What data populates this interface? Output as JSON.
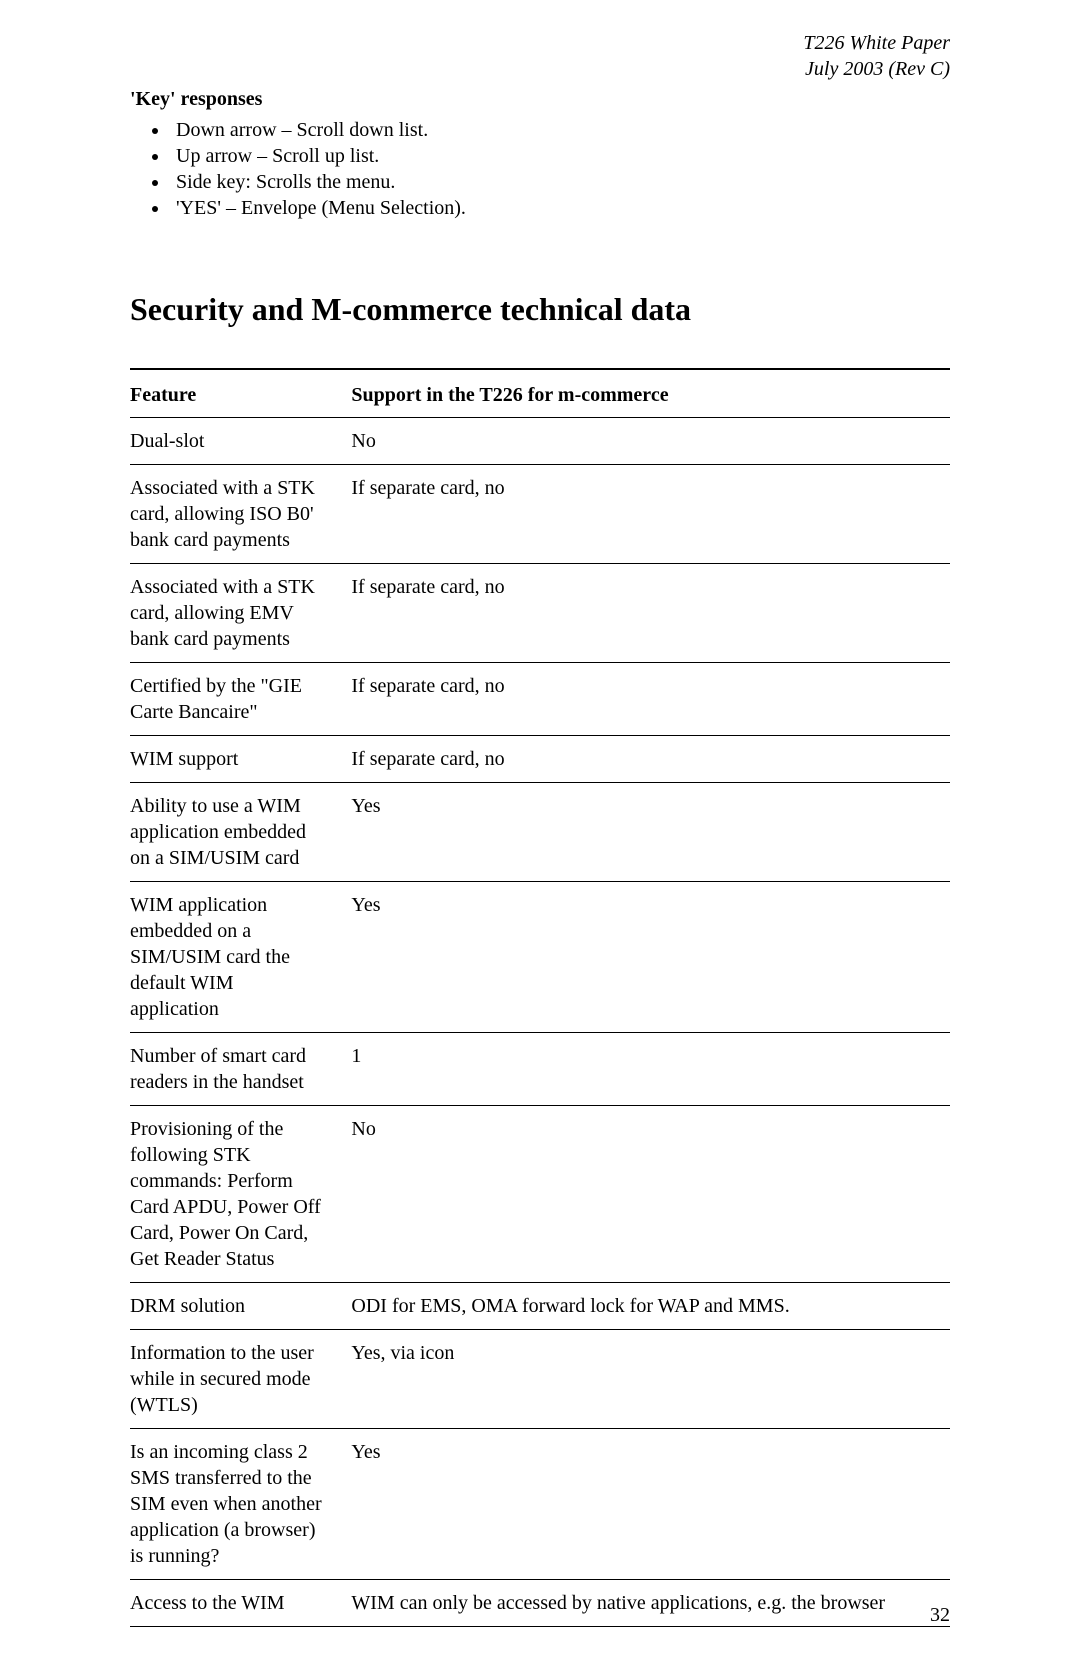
{
  "header": {
    "line1": "T226 White Paper",
    "line2": "July 2003 (Rev C)"
  },
  "keyResponses": {
    "title": "'Key' responses",
    "items": [
      "Down arrow – Scroll down list.",
      "Up arrow – Scroll up list.",
      "Side key: Scrolls the menu.",
      "'YES' – Envelope (Menu Selection)."
    ]
  },
  "sectionTitle": "Security and M-commerce technical data",
  "table": {
    "columns": [
      "Feature",
      "Support in the T226 for m-commerce"
    ],
    "rows": [
      [
        "Dual-slot",
        "No"
      ],
      [
        "Associated with a STK card, allowing ISO B0' bank card payments",
        "If separate card, no"
      ],
      [
        "Associated with a STK card, allowing EMV bank card payments",
        "If separate card, no"
      ],
      [
        "Certified by the \"GIE Carte Bancaire\"",
        "If separate card, no"
      ],
      [
        "WIM support",
        "If separate card, no"
      ],
      [
        "Ability to use a WIM application embedded on a SIM/USIM card",
        "Yes"
      ],
      [
        "WIM application embedded on a SIM/USIM card the default WIM application",
        "Yes"
      ],
      [
        "Number of smart card readers in the handset",
        "1"
      ],
      [
        "Provisioning of the following STK commands: Perform Card APDU, Power Off Card, Power On Card, Get Reader Status",
        "No"
      ],
      [
        "DRM solution",
        "ODI for EMS, OMA forward lock for WAP and MMS."
      ],
      [
        "Information to the user while in secured mode (WTLS)",
        "Yes, via icon"
      ],
      [
        "Is an incoming class 2 SMS transferred to the SIM even when another application (a browser) is running?",
        "Yes"
      ],
      [
        "Access to the WIM",
        "WIM can only be accessed by native applications, e.g. the browser"
      ]
    ]
  },
  "pageNumber": "32"
}
